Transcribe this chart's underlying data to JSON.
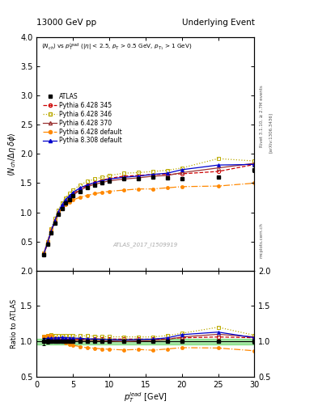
{
  "title_left": "13000 GeV pp",
  "title_right": "Underlying Event",
  "right_label_1": "Rivet 3.1.10, ≥ 2.7M events",
  "right_label_2": "[arXiv:1306.3436]",
  "right_label_3": "mcplots.cern.ch",
  "plot_label": "ATLAS_2017_I1509919",
  "xlabel": "$p_T^l$ead [GeV]",
  "ylabel_main": "$\\langle N_{ch}/ \\Delta\\eta\\, \\delta\\phi\\rangle$",
  "ylabel_ratio": "Ratio to ATLAS",
  "xlim": [
    0,
    30
  ],
  "ylim_main": [
    0,
    4
  ],
  "ylim_ratio": [
    0.5,
    2
  ],
  "yticks_main": [
    0.5,
    1.0,
    1.5,
    2.0,
    2.5,
    3.0,
    3.5,
    4.0
  ],
  "yticks_ratio": [
    0.5,
    1.0,
    1.5,
    2.0
  ],
  "xticks": [
    0,
    5,
    10,
    15,
    20,
    25,
    30
  ],
  "atlas_x": [
    1.0,
    1.5,
    2.0,
    2.5,
    3.0,
    3.5,
    4.0,
    4.5,
    5.0,
    6.0,
    7.0,
    8.0,
    9.0,
    10.0,
    12.0,
    14.0,
    16.0,
    18.0,
    20.0,
    25.0,
    30.0
  ],
  "atlas_y": [
    0.28,
    0.46,
    0.65,
    0.82,
    0.96,
    1.07,
    1.16,
    1.22,
    1.28,
    1.36,
    1.42,
    1.46,
    1.5,
    1.53,
    1.57,
    1.58,
    1.6,
    1.59,
    1.58,
    1.6,
    1.73
  ],
  "atlas_yerr": [
    0.015,
    0.015,
    0.015,
    0.015,
    0.015,
    0.015,
    0.015,
    0.015,
    0.015,
    0.015,
    0.015,
    0.015,
    0.015,
    0.015,
    0.015,
    0.015,
    0.015,
    0.015,
    0.025,
    0.025,
    0.05
  ],
  "py6_345_x": [
    1.0,
    1.5,
    2.0,
    2.5,
    3.0,
    3.5,
    4.0,
    4.5,
    5.0,
    6.0,
    7.0,
    8.0,
    9.0,
    10.0,
    12.0,
    14.0,
    16.0,
    18.0,
    20.0,
    25.0,
    30.0
  ],
  "py6_345_y": [
    0.28,
    0.46,
    0.67,
    0.84,
    0.99,
    1.1,
    1.19,
    1.25,
    1.31,
    1.4,
    1.46,
    1.51,
    1.55,
    1.58,
    1.62,
    1.63,
    1.65,
    1.65,
    1.66,
    1.7,
    1.82
  ],
  "py6_346_x": [
    1.0,
    1.5,
    2.0,
    2.5,
    3.0,
    3.5,
    4.0,
    4.5,
    5.0,
    6.0,
    7.0,
    8.0,
    9.0,
    10.0,
    12.0,
    14.0,
    16.0,
    18.0,
    20.0,
    25.0,
    30.0
  ],
  "py6_346_y": [
    0.3,
    0.5,
    0.71,
    0.89,
    1.04,
    1.16,
    1.25,
    1.32,
    1.38,
    1.47,
    1.53,
    1.57,
    1.6,
    1.63,
    1.67,
    1.68,
    1.7,
    1.72,
    1.76,
    1.92,
    1.88
  ],
  "py6_370_x": [
    1.0,
    1.5,
    2.0,
    2.5,
    3.0,
    3.5,
    4.0,
    4.5,
    5.0,
    6.0,
    7.0,
    8.0,
    9.0,
    10.0,
    12.0,
    14.0,
    16.0,
    18.0,
    20.0,
    25.0,
    30.0
  ],
  "py6_370_y": [
    0.28,
    0.46,
    0.66,
    0.83,
    0.97,
    1.08,
    1.17,
    1.23,
    1.29,
    1.38,
    1.44,
    1.48,
    1.51,
    1.54,
    1.57,
    1.59,
    1.62,
    1.63,
    1.68,
    1.76,
    1.84
  ],
  "py6_def_x": [
    1.0,
    1.5,
    2.0,
    2.5,
    3.0,
    3.5,
    4.0,
    4.5,
    5.0,
    6.0,
    7.0,
    8.0,
    9.0,
    10.0,
    12.0,
    14.0,
    16.0,
    18.0,
    20.0,
    25.0,
    30.0
  ],
  "py6_def_y": [
    0.3,
    0.5,
    0.7,
    0.86,
    0.99,
    1.07,
    1.13,
    1.17,
    1.21,
    1.26,
    1.29,
    1.32,
    1.34,
    1.36,
    1.38,
    1.4,
    1.4,
    1.42,
    1.44,
    1.45,
    1.5
  ],
  "py8_def_x": [
    1.0,
    1.5,
    2.0,
    2.5,
    3.0,
    3.5,
    4.0,
    4.5,
    5.0,
    6.0,
    7.0,
    8.0,
    9.0,
    10.0,
    12.0,
    14.0,
    16.0,
    18.0,
    20.0,
    25.0,
    30.0
  ],
  "py8_def_y": [
    0.29,
    0.48,
    0.68,
    0.86,
    1.01,
    1.13,
    1.22,
    1.28,
    1.34,
    1.42,
    1.47,
    1.51,
    1.54,
    1.57,
    1.6,
    1.62,
    1.65,
    1.67,
    1.73,
    1.81,
    1.82
  ],
  "atlas_color": "#000000",
  "py6_345_color": "#cc0000",
  "py6_346_color": "#bbaa00",
  "py6_370_color": "#993333",
  "py6_def_color": "#ff8800",
  "py8_def_color": "#0000cc",
  "green_band_color": "#00bb00",
  "green_band_alpha": 0.35,
  "green_band_lo": 0.96,
  "green_band_hi": 1.04
}
